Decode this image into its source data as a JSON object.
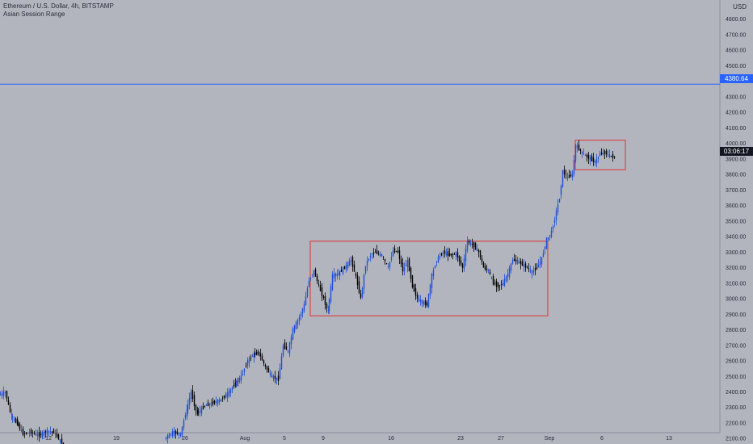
{
  "header": {
    "symbol_line": "Ethereum / U.S. Dollar, 4h, BITSTAMP",
    "indicator": "Asian Session Range",
    "currency": "USD"
  },
  "price_tags": {
    "horizontal_line": "4380.64",
    "countdown": "03:06:17"
  },
  "colors": {
    "background": "#b2b5be",
    "candle": "#000000",
    "up_candle": "#1e4fd8",
    "line": "#2962ff",
    "box": "#e03131"
  },
  "chart_data": {
    "type": "candlestick",
    "title": "Ethereum / U.S. Dollar, 4h, BITSTAMP",
    "indicator": "Asian Session Range",
    "ylim": [
      2050,
      4900
    ],
    "y_ticks": [
      2100,
      2200,
      2300,
      2400,
      2500,
      2600,
      2700,
      2800,
      2900,
      3000,
      3100,
      3200,
      3300,
      3400,
      3500,
      3600,
      3700,
      3800,
      3900,
      4000,
      4100,
      4200,
      4300,
      4500,
      4600,
      4700,
      4800
    ],
    "y_tick_labels": [
      "2100.00",
      "2200.00",
      "2300.00",
      "2400.00",
      "2500.00",
      "2600.00",
      "2700.00",
      "2800.00",
      "2900.00",
      "3000.00",
      "3100.00",
      "3200.00",
      "3300.00",
      "3400.00",
      "3500.00",
      "3600.00",
      "3700.00",
      "3800.00",
      "3900.00",
      "4000.00",
      "4100.00",
      "4200.00",
      "4300.00",
      "4500.00",
      "4600.00",
      "4700.00",
      "4800.00"
    ],
    "x_ticks": [
      "12",
      "19",
      "26",
      "Aug",
      "5",
      "9",
      "16",
      "23",
      "27",
      "Sep",
      "6",
      "13"
    ],
    "horizontal_line": 4380.64,
    "last_price": 3910,
    "series": [
      {
        "points": [
          {
            "x": 0,
            "y": 2380
          },
          {
            "x": 8,
            "y": 2400
          },
          {
            "x": 15,
            "y": 2250
          },
          {
            "x": 22,
            "y": 2200
          },
          {
            "x": 30,
            "y": 2130
          },
          {
            "x": 40,
            "y": 2140
          },
          {
            "x": 50,
            "y": 2120
          },
          {
            "x": 60,
            "y": 2150
          },
          {
            "x": 68,
            "y": 2140
          },
          {
            "x": 80,
            "y": 2060
          },
          {
            "x": 205,
            "y": 2100
          },
          {
            "x": 215,
            "y": 2140
          },
          {
            "x": 225,
            "y": 2130
          },
          {
            "x": 232,
            "y": 2280
          },
          {
            "x": 238,
            "y": 2400
          },
          {
            "x": 245,
            "y": 2260
          },
          {
            "x": 255,
            "y": 2310
          },
          {
            "x": 265,
            "y": 2330
          },
          {
            "x": 275,
            "y": 2350
          },
          {
            "x": 285,
            "y": 2400
          },
          {
            "x": 292,
            "y": 2450
          },
          {
            "x": 300,
            "y": 2500
          },
          {
            "x": 308,
            "y": 2600
          },
          {
            "x": 315,
            "y": 2640
          },
          {
            "x": 322,
            "y": 2650
          },
          {
            "x": 330,
            "y": 2560
          },
          {
            "x": 338,
            "y": 2500
          },
          {
            "x": 346,
            "y": 2480
          },
          {
            "x": 352,
            "y": 2700
          },
          {
            "x": 358,
            "y": 2660
          },
          {
            "x": 364,
            "y": 2800
          },
          {
            "x": 372,
            "y": 2880
          },
          {
            "x": 378,
            "y": 2960
          },
          {
            "x": 384,
            "y": 3120
          },
          {
            "x": 390,
            "y": 3180
          },
          {
            "x": 396,
            "y": 3080
          },
          {
            "x": 402,
            "y": 3000
          },
          {
            "x": 407,
            "y": 2920
          },
          {
            "x": 413,
            "y": 3150
          },
          {
            "x": 420,
            "y": 3160
          },
          {
            "x": 428,
            "y": 3200
          },
          {
            "x": 436,
            "y": 3250
          },
          {
            "x": 442,
            "y": 3140
          },
          {
            "x": 448,
            "y": 3000
          },
          {
            "x": 454,
            "y": 3220
          },
          {
            "x": 460,
            "y": 3280
          },
          {
            "x": 466,
            "y": 3300
          },
          {
            "x": 474,
            "y": 3280
          },
          {
            "x": 482,
            "y": 3200
          },
          {
            "x": 488,
            "y": 3310
          },
          {
            "x": 494,
            "y": 3300
          },
          {
            "x": 500,
            "y": 3180
          },
          {
            "x": 506,
            "y": 3240
          },
          {
            "x": 512,
            "y": 3080
          },
          {
            "x": 518,
            "y": 3000
          },
          {
            "x": 524,
            "y": 2980
          },
          {
            "x": 530,
            "y": 2960
          },
          {
            "x": 536,
            "y": 3150
          },
          {
            "x": 542,
            "y": 3250
          },
          {
            "x": 550,
            "y": 3300
          },
          {
            "x": 558,
            "y": 3280
          },
          {
            "x": 566,
            "y": 3290
          },
          {
            "x": 574,
            "y": 3200
          },
          {
            "x": 580,
            "y": 3370
          },
          {
            "x": 588,
            "y": 3340
          },
          {
            "x": 594,
            "y": 3300
          },
          {
            "x": 600,
            "y": 3200
          },
          {
            "x": 606,
            "y": 3180
          },
          {
            "x": 612,
            "y": 3100
          },
          {
            "x": 618,
            "y": 3080
          },
          {
            "x": 624,
            "y": 3100
          },
          {
            "x": 630,
            "y": 3160
          },
          {
            "x": 636,
            "y": 3250
          },
          {
            "x": 642,
            "y": 3240
          },
          {
            "x": 648,
            "y": 3220
          },
          {
            "x": 654,
            "y": 3200
          },
          {
            "x": 660,
            "y": 3170
          },
          {
            "x": 666,
            "y": 3200
          },
          {
            "x": 672,
            "y": 3260
          },
          {
            "x": 678,
            "y": 3380
          },
          {
            "x": 684,
            "y": 3430
          },
          {
            "x": 690,
            "y": 3560
          },
          {
            "x": 694,
            "y": 3650
          },
          {
            "x": 698,
            "y": 3820
          },
          {
            "x": 704,
            "y": 3780
          },
          {
            "x": 710,
            "y": 3800
          },
          {
            "x": 714,
            "y": 3990
          },
          {
            "x": 720,
            "y": 3950
          },
          {
            "x": 726,
            "y": 3920
          },
          {
            "x": 732,
            "y": 3900
          },
          {
            "x": 738,
            "y": 3880
          },
          {
            "x": 744,
            "y": 3930
          },
          {
            "x": 750,
            "y": 3940
          },
          {
            "x": 756,
            "y": 3920
          },
          {
            "x": 762,
            "y": 3910
          }
        ]
      }
    ],
    "ranges": [
      {
        "x1": 384,
        "x2": 678,
        "y_low": 2890,
        "y_high": 3370
      },
      {
        "x1": 712,
        "x2": 774,
        "y_low": 3830,
        "y_high": 4020
      }
    ]
  }
}
